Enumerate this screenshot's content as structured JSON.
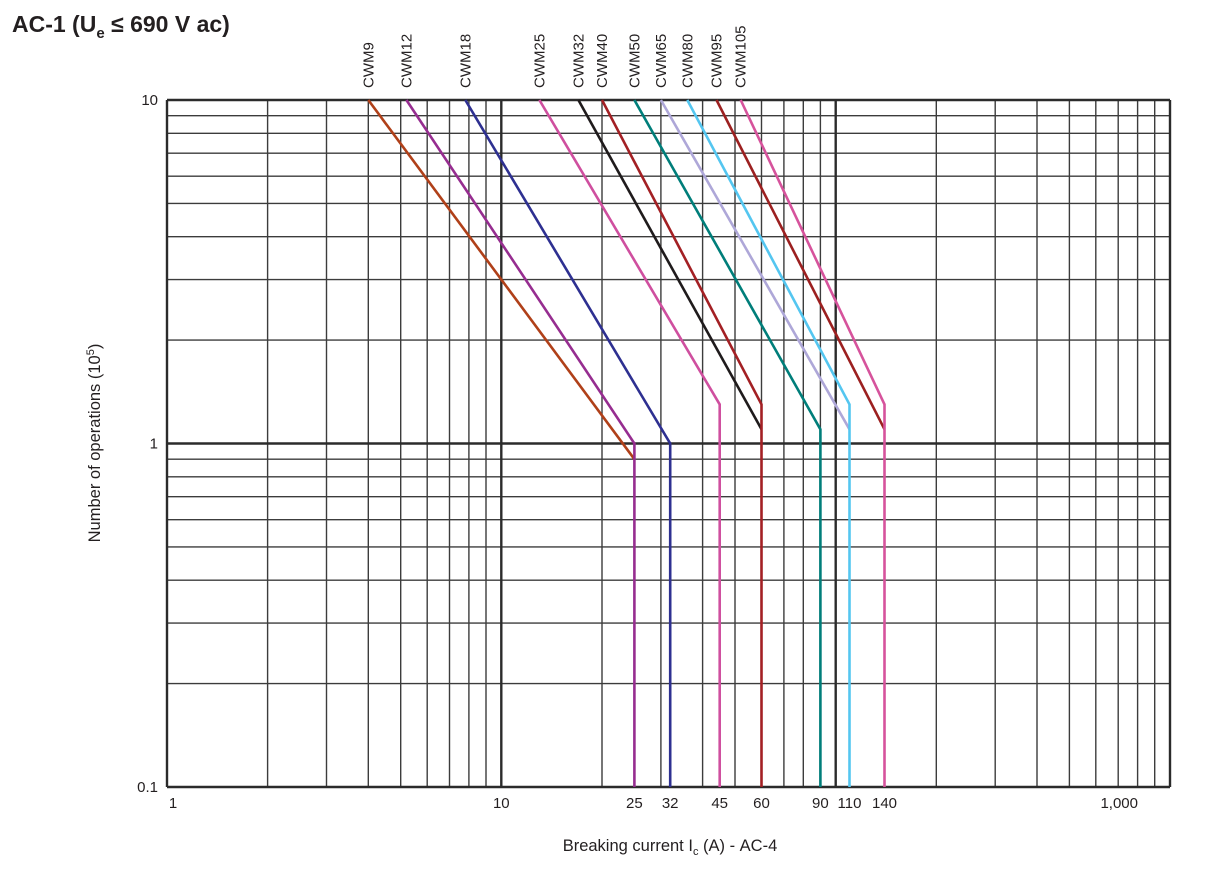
{
  "title": {
    "pre": "AC-1 (U",
    "sub": "e",
    "post": " ≤ 690 V ac)"
  },
  "chart_data": {
    "type": "line",
    "title": "AC-1 (Ue ≤ 690 V ac)",
    "x_axis": {
      "label": {
        "pre": "Breaking current I",
        "sub": "c",
        "post": " (A) - AC-4"
      },
      "scale": "log",
      "min": 1,
      "max": 1000,
      "ticks": [
        {
          "value": 1,
          "label": "1"
        },
        {
          "value": 10,
          "label": "10"
        },
        {
          "value": 25,
          "label": "25"
        },
        {
          "value": 32,
          "label": "32"
        },
        {
          "value": 45,
          "label": "45"
        },
        {
          "value": 60,
          "label": "60"
        },
        {
          "value": 90,
          "label": "90"
        },
        {
          "value": 110,
          "label": "110"
        },
        {
          "value": 140,
          "label": "140"
        },
        {
          "value": 1000,
          "label": "1,000"
        }
      ]
    },
    "y_axis": {
      "label": {
        "pre": "Number of operations (10",
        "sup": "5",
        "post": ")"
      },
      "scale": "log",
      "min": 0.1,
      "max": 10,
      "ticks": [
        {
          "value": 10,
          "label": "10"
        },
        {
          "value": 1,
          "label": "1"
        },
        {
          "value": 0.1,
          "label": "0.1"
        }
      ]
    },
    "grid": true,
    "grid_color_minor": "#3c3c3c",
    "grid_color_major": "#2b2b2b",
    "series": [
      {
        "name": "CWM9",
        "color": "#b04019",
        "points": [
          [
            4,
            10
          ],
          [
            25,
            0.9
          ]
        ]
      },
      {
        "name": "CWM12",
        "color": "#962d90",
        "points": [
          [
            5.2,
            10
          ],
          [
            25,
            1.0
          ],
          [
            25,
            0.1
          ]
        ]
      },
      {
        "name": "CWM18",
        "color": "#2e3091",
        "points": [
          [
            7.8,
            10
          ],
          [
            32,
            1.0
          ],
          [
            32,
            0.1
          ]
        ]
      },
      {
        "name": "CWM25",
        "color": "#cf4f9f",
        "points": [
          [
            13,
            10
          ],
          [
            45,
            1.3
          ],
          [
            45,
            0.1
          ]
        ]
      },
      {
        "name": "CWM32",
        "color": "#1f1b1c",
        "points": [
          [
            17,
            10
          ],
          [
            60,
            1.1
          ]
        ]
      },
      {
        "name": "CWM40",
        "color": "#a32024",
        "points": [
          [
            20,
            10
          ],
          [
            60,
            1.3
          ],
          [
            60,
            0.1
          ]
        ]
      },
      {
        "name": "CWM50",
        "color": "#007e7a",
        "points": [
          [
            25,
            10
          ],
          [
            90,
            1.1
          ],
          [
            90,
            0.1
          ]
        ]
      },
      {
        "name": "CWM65",
        "color": "#aea7d8",
        "points": [
          [
            30,
            10
          ],
          [
            110,
            1.1
          ]
        ]
      },
      {
        "name": "CWM80",
        "color": "#54c6f0",
        "points": [
          [
            36,
            10
          ],
          [
            110,
            1.3
          ],
          [
            110,
            0.1
          ]
        ]
      },
      {
        "name": "CWM95",
        "color": "#9c2020",
        "points": [
          [
            44,
            10
          ],
          [
            140,
            1.1
          ]
        ]
      },
      {
        "name": "CWM105",
        "color": "#d6539c",
        "points": [
          [
            52,
            10
          ],
          [
            140,
            1.3
          ],
          [
            140,
            0.1
          ]
        ]
      }
    ]
  }
}
